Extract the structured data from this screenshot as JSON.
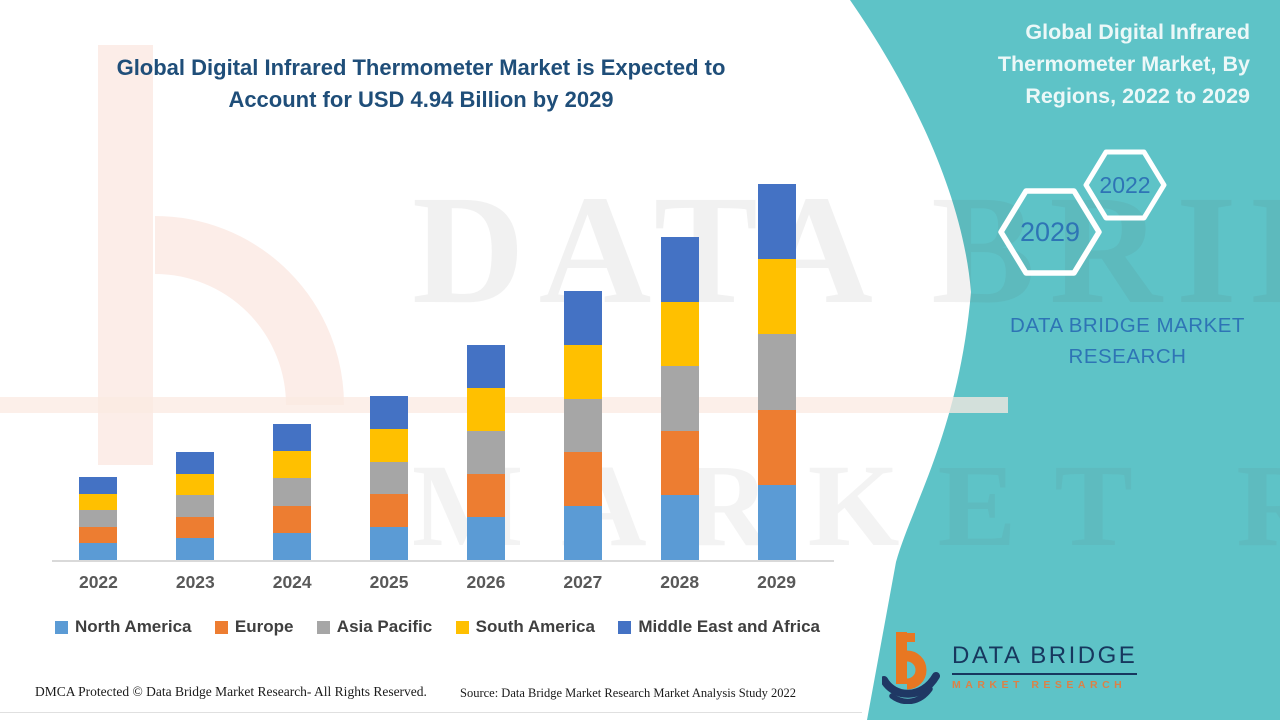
{
  "header": {
    "title_lines": [
      "Global Digital Infrared Thermometer Market is Expected to",
      "Account for USD 4.94 Billion by 2029"
    ]
  },
  "side_panel": {
    "heading_lines": [
      "Global Digital Infrared",
      "Thermometer Market, By",
      "Regions, 2022 to 2029"
    ],
    "hexagons": {
      "large": "2029",
      "small": "2022"
    },
    "brand_text": "DATA BRIDGE MARKET RESEARCH",
    "teal_color": "#5ec3c7",
    "blue_text_color": "#2e74b5"
  },
  "watermark": {
    "line1": "DATA BRIDGE",
    "line2": "MARKET RESEARCH"
  },
  "chart_data": {
    "type": "bar",
    "stacked": true,
    "title": "Global Digital Infrared Thermometer Market, By Regions, 2022 to 2029",
    "units": "USD Billion",
    "categories": [
      "2022",
      "2023",
      "2024",
      "2025",
      "2026",
      "2027",
      "2028",
      "2029"
    ],
    "series": [
      {
        "name": "North America",
        "color": "#5b9bd5",
        "values": [
          0.218,
          0.284,
          0.357,
          0.431,
          0.565,
          0.707,
          0.849,
          0.988
        ]
      },
      {
        "name": "Europe",
        "color": "#ed7d31",
        "values": [
          0.218,
          0.284,
          0.357,
          0.431,
          0.565,
          0.707,
          0.849,
          0.988
        ]
      },
      {
        "name": "Asia Pacific",
        "color": "#a6a6a6",
        "values": [
          0.218,
          0.284,
          0.357,
          0.431,
          0.565,
          0.707,
          0.849,
          0.988
        ]
      },
      {
        "name": "South America",
        "color": "#ffc000",
        "values": [
          0.218,
          0.284,
          0.357,
          0.431,
          0.565,
          0.707,
          0.849,
          0.988
        ]
      },
      {
        "name": "Middle East and Africa",
        "color": "#4472c4",
        "values": [
          0.218,
          0.284,
          0.357,
          0.431,
          0.565,
          0.707,
          0.849,
          0.988
        ]
      }
    ],
    "totals": [
      1.09,
      1.42,
      1.79,
      2.15,
      2.82,
      3.53,
      4.24,
      4.94
    ],
    "ylim": [
      0,
      4.94
    ],
    "grid": false,
    "legend_position": "bottom"
  },
  "footer": {
    "left": "DMCA Protected © Data Bridge Market Research- All Rights Reserved.",
    "source": "Source: Data Bridge Market Research Market Analysis Study 2022"
  },
  "logo": {
    "name": "DATA BRIDGE",
    "tagline": "MARKET RESEARCH"
  }
}
